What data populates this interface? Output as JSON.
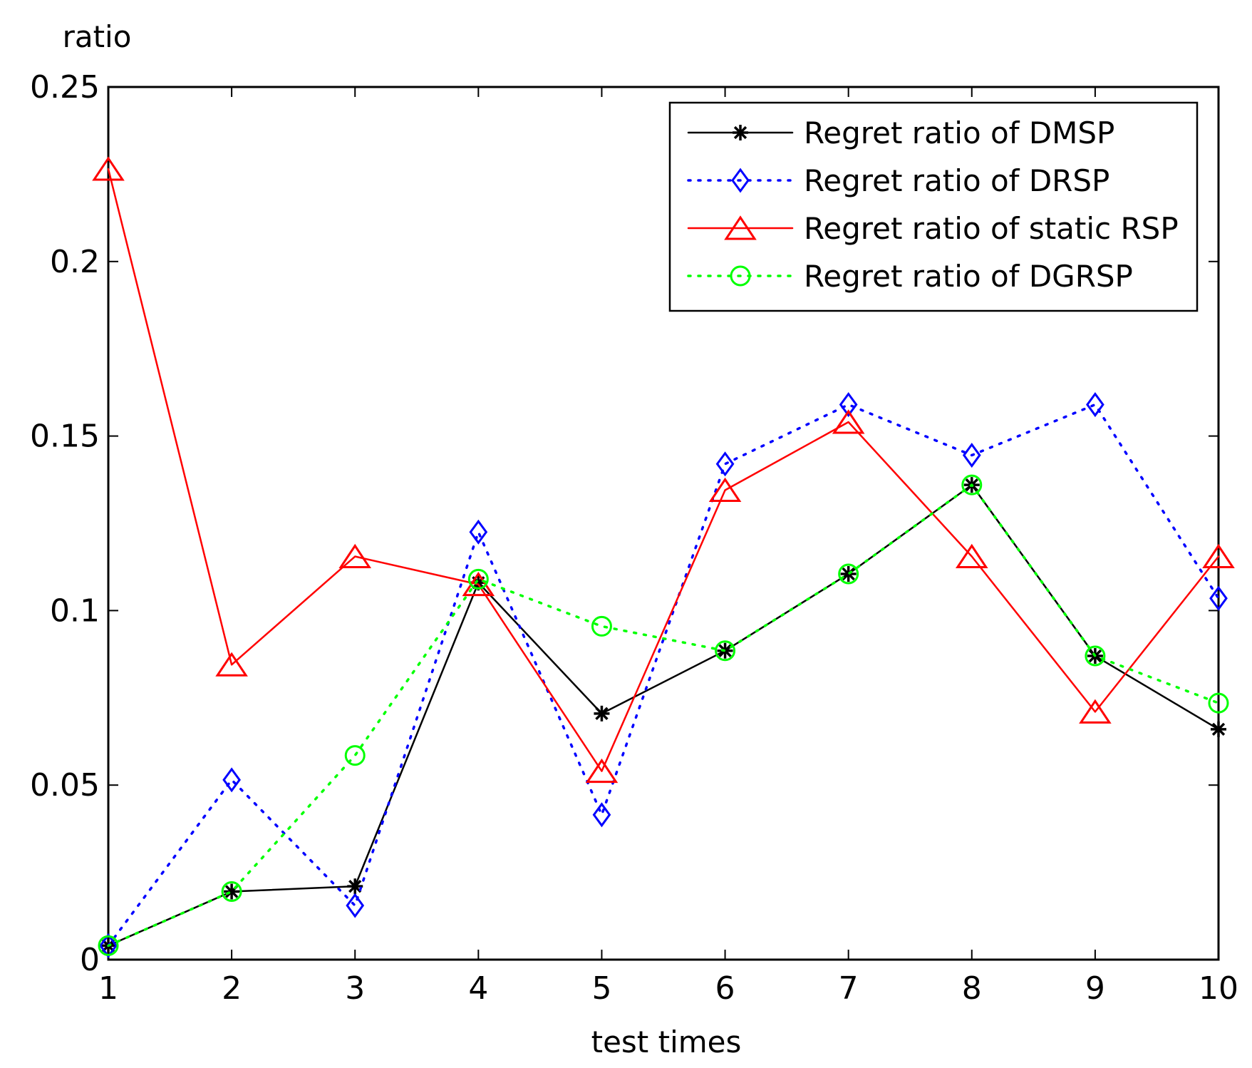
{
  "chart_data": {
    "type": "line",
    "title": "",
    "xlabel": "test times",
    "ylabel": "ratio",
    "x": [
      1,
      2,
      3,
      4,
      5,
      6,
      7,
      8,
      9,
      10
    ],
    "xlim": [
      1,
      10
    ],
    "ylim": [
      0,
      0.25
    ],
    "xticks": [
      "1",
      "2",
      "3",
      "4",
      "5",
      "6",
      "7",
      "8",
      "9",
      "10"
    ],
    "yticks": [
      {
        "value": 0,
        "label": "0"
      },
      {
        "value": 0.05,
        "label": "0.05"
      },
      {
        "value": 0.1,
        "label": "0.1"
      },
      {
        "value": 0.15,
        "label": "0.15"
      },
      {
        "value": 0.2,
        "label": "0.2"
      },
      {
        "value": 0.25,
        "label": "0.25"
      }
    ],
    "grid": false,
    "legend_position": "top-right",
    "series": [
      {
        "name": "Regret ratio of DMSP",
        "color": "#000000",
        "line_style": "solid",
        "marker": "star",
        "values": [
          0.004,
          0.0195,
          0.021,
          0.108,
          0.0705,
          0.0885,
          0.1105,
          0.136,
          0.087,
          0.066
        ]
      },
      {
        "name": "Regret ratio of DRSP",
        "color": "#0000ff",
        "line_style": "dotted",
        "marker": "diamond",
        "values": [
          0.004,
          0.0515,
          0.0155,
          0.1225,
          0.0415,
          0.142,
          0.159,
          0.1445,
          0.159,
          0.1035
        ]
      },
      {
        "name": "Regret ratio of static RSP",
        "color": "#ff0000",
        "line_style": "solid",
        "marker": "triangle",
        "values": [
          0.2265,
          0.0845,
          0.1155,
          0.1075,
          0.054,
          0.1345,
          0.154,
          0.1155,
          0.071,
          0.1155
        ]
      },
      {
        "name": "Regret ratio of DGRSP",
        "color": "#00ff00",
        "line_style": "dotted",
        "marker": "circle",
        "values": [
          0.004,
          0.0195,
          0.0585,
          0.109,
          0.0955,
          0.0885,
          0.1105,
          0.136,
          0.087,
          0.0735
        ]
      }
    ]
  }
}
